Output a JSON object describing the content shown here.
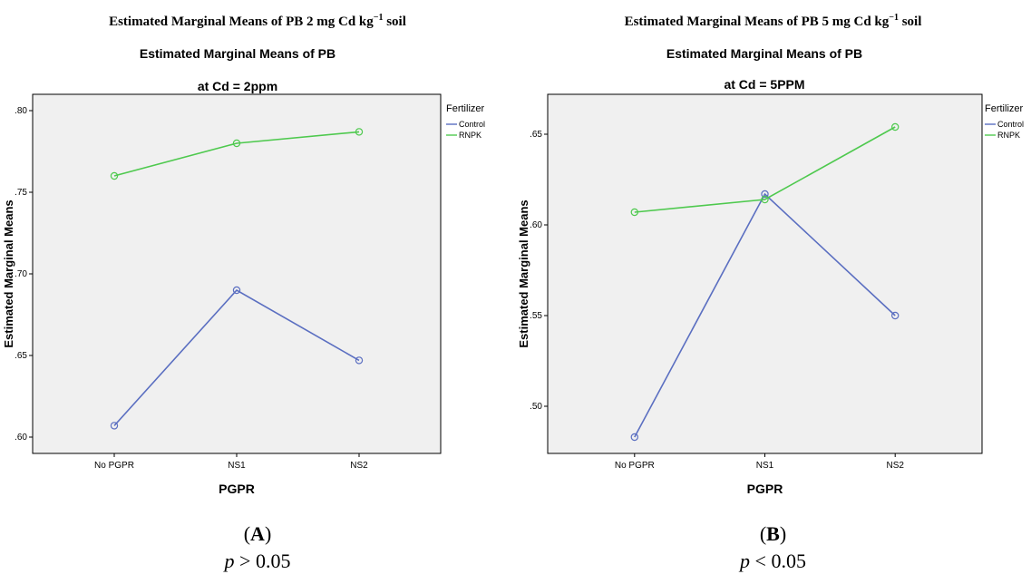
{
  "colors": {
    "control": "#5b6fc1",
    "rnpk": "#4ec94e",
    "plot_bg": "#f0f0f0"
  },
  "panels": [
    {
      "id": "a",
      "heading_main": "Estimated Marginal Means of PB 2 mg Cd kg",
      "heading_sup": "−1",
      "heading_tail": " soil",
      "letter": "A",
      "p_symbol": "p",
      "p_text": " > 0.05"
    },
    {
      "id": "b",
      "heading_main": "Estimated Marginal Means of PB 5 mg Cd kg",
      "heading_sup": "−1",
      "heading_tail": " soil",
      "letter": "B",
      "p_symbol": "p",
      "p_text": " < 0.05"
    }
  ],
  "chart_data": [
    {
      "type": "line",
      "title": "Estimated Marginal Means of PB",
      "subtitle": "at Cd = 2ppm",
      "xlabel": "PGPR",
      "ylabel": "Estimated Marginal Means",
      "categories": [
        "No PGPR",
        "NS1",
        "NS2"
      ],
      "ylim": [
        0.59,
        0.81
      ],
      "yticks": [
        0.6,
        0.65,
        0.7,
        0.75,
        0.8
      ],
      "ytick_labels": [
        ".60",
        ".65",
        ".70",
        ".75",
        ".80"
      ],
      "legend_title": "Fertilizer",
      "legend_position": "right",
      "grid": false,
      "series": [
        {
          "name": "Control",
          "values": [
            0.607,
            0.69,
            0.647
          ]
        },
        {
          "name": "RNPK",
          "values": [
            0.76,
            0.78,
            0.787
          ]
        }
      ]
    },
    {
      "type": "line",
      "title": "Estimated Marginal Means of PB",
      "subtitle": "at Cd = 5PPM",
      "xlabel": "PGPR",
      "ylabel": "Estimated Marginal Means",
      "categories": [
        "No PGPR",
        "NS1",
        "NS2"
      ],
      "ylim": [
        0.474,
        0.672
      ],
      "yticks": [
        0.5,
        0.55,
        0.6,
        0.65
      ],
      "ytick_labels": [
        ".50",
        ".55",
        ".60",
        ".65"
      ],
      "legend_title": "Fertilizer",
      "legend_position": "right",
      "grid": false,
      "series": [
        {
          "name": "Control",
          "values": [
            0.483,
            0.617,
            0.55
          ]
        },
        {
          "name": "RNPK",
          "values": [
            0.607,
            0.614,
            0.654
          ]
        }
      ]
    }
  ]
}
